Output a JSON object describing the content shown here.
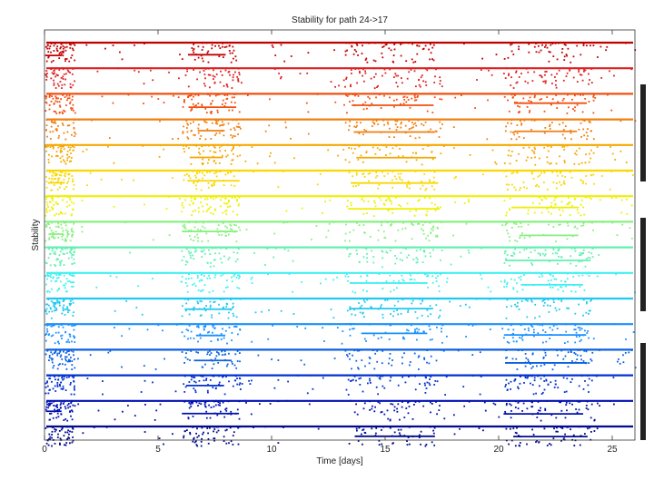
{
  "chart_data": {
    "type": "scatter",
    "title": "Stability for path 24->17",
    "xlabel": "Time [days]",
    "ylabel": "Stability",
    "xlim": [
      0,
      26
    ],
    "x_ticks": [
      0,
      5,
      10,
      15,
      20,
      25
    ],
    "x_tick_labels": [
      "0",
      "5",
      "10",
      "15",
      "20",
      "25"
    ],
    "grid": false,
    "series_count": 16,
    "series_colors": [
      "#c00000",
      "#e02020",
      "#f05010",
      "#f07f10",
      "#f5a800",
      "#f8d800",
      "#eef000",
      "#88f080",
      "#60f0b0",
      "#40f0f0",
      "#20c8f0",
      "#1890ff",
      "#0c60e0",
      "#0030d0",
      "#0010b0",
      "#000a90"
    ],
    "active_stretches_days": [
      [
        0,
        1.3
      ],
      [
        6,
        8.6
      ],
      [
        13.2,
        17.5
      ],
      [
        20.2,
        24.2
      ]
    ],
    "side_marker_count": 3
  }
}
